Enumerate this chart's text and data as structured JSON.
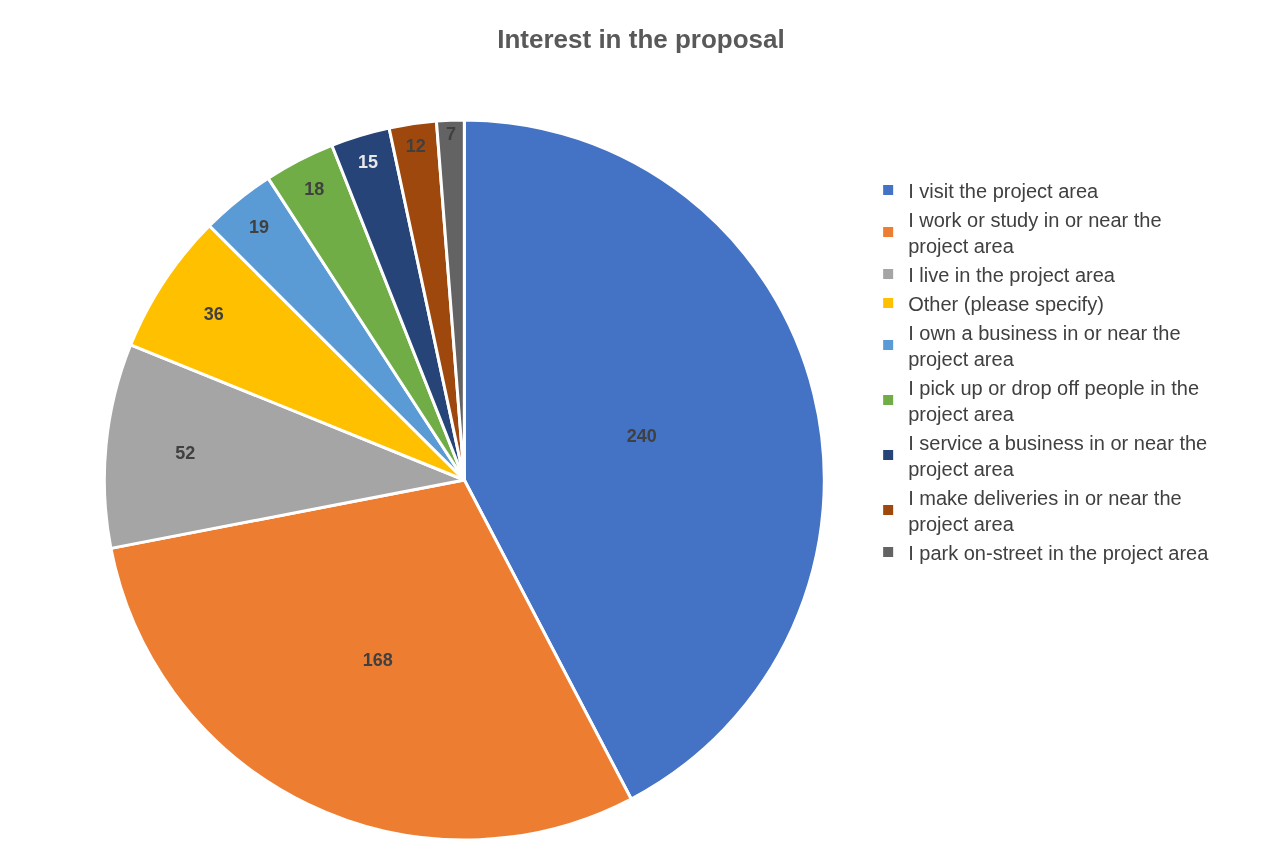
{
  "chart_data": {
    "type": "pie",
    "title": "Interest in the proposal",
    "categories": [
      "I visit the project area",
      "I work or study in or near the project area",
      "I live in the project area",
      "Other (please specify)",
      "I own a business in or near the project area",
      "I pick up or drop off people in the project area",
      "I service a business in or near the project area",
      "I make deliveries in or near the project area",
      "I park on-street in the project area"
    ],
    "values": [
      240,
      168,
      52,
      36,
      19,
      18,
      15,
      12,
      7
    ],
    "colors": [
      "#4472c4",
      "#ed7d31",
      "#a5a5a5",
      "#ffc000",
      "#5b9bd5",
      "#70ad47",
      "#264478",
      "#9e480e",
      "#636363"
    ],
    "data_labels": true,
    "legend": "right"
  }
}
